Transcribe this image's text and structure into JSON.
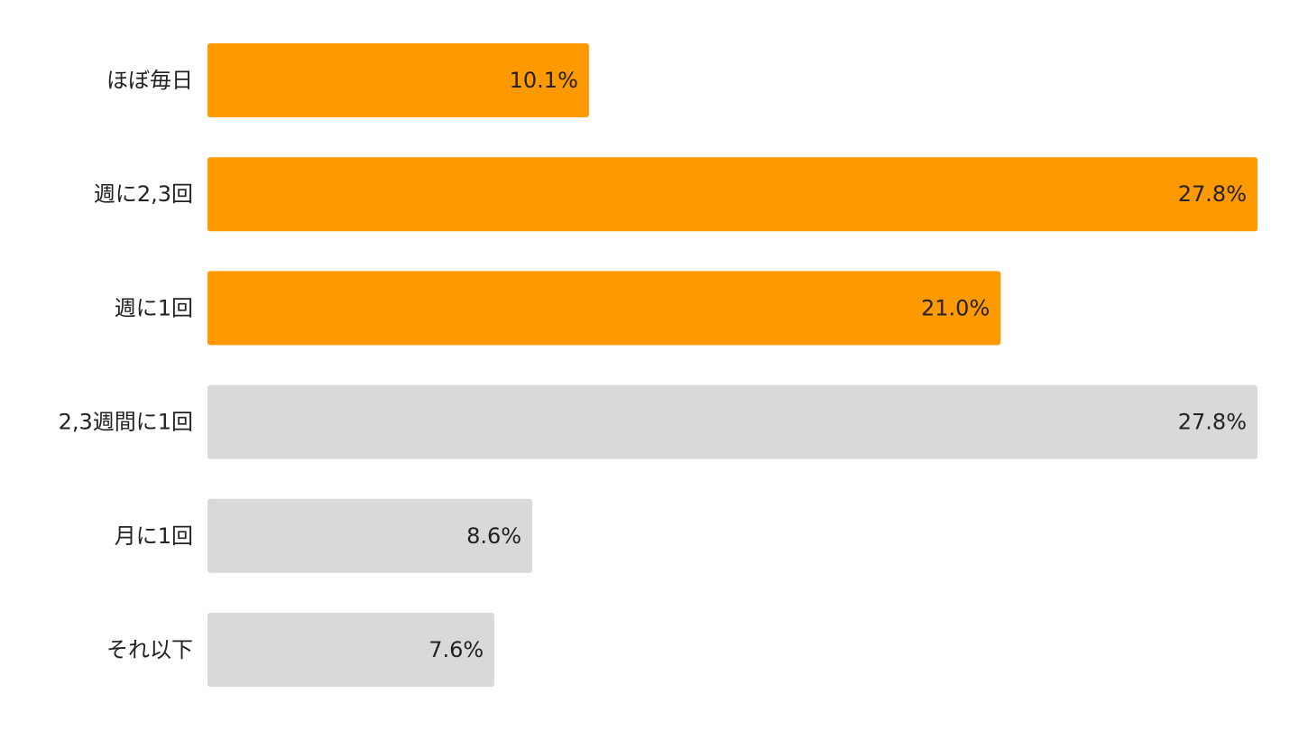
{
  "chart_data": {
    "type": "bar",
    "orientation": "horizontal",
    "categories": [
      "ほぼ毎日",
      "週に2,3回",
      "週に1回",
      "2,3週間に1回",
      "月に1回",
      "それ以下"
    ],
    "values": [
      10.1,
      27.8,
      21.0,
      27.8,
      8.6,
      7.6
    ],
    "value_labels": [
      "10.1%",
      "27.8%",
      "21.0%",
      "27.8%",
      "8.6%",
      "7.6%"
    ],
    "bar_colors": [
      "#FF9900",
      "#FF9900",
      "#FF9900",
      "#D9D9D9",
      "#D9D9D9",
      "#D9D9D9"
    ],
    "xlim": [
      0,
      27.8
    ],
    "grid": false,
    "title": "",
    "xlabel": "",
    "ylabel": ""
  }
}
